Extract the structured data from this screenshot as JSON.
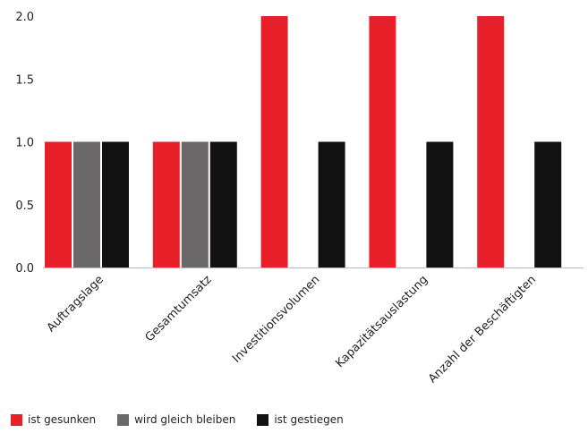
{
  "chart_data": {
    "type": "bar",
    "categories": [
      "Auftragslage",
      "Gesamtumsatz",
      "Investitionsvolumen",
      "Kapazitätsauslastung",
      "Anzahl der Beschäftigten"
    ],
    "series": [
      {
        "name": "ist gesunken",
        "color": "#e8202a",
        "values": [
          1,
          1,
          2,
          2,
          2
        ]
      },
      {
        "name": "wird gleich bleiben",
        "color": "#6a6869",
        "values": [
          1,
          1,
          0,
          0,
          0
        ]
      },
      {
        "name": "ist gestiegen",
        "color": "#111111",
        "values": [
          1,
          1,
          1,
          1,
          1
        ]
      }
    ],
    "yticks": [
      "0.0",
      "0.5",
      "1.0",
      "1.5",
      "2.0"
    ],
    "ylim": [
      0,
      2
    ],
    "grid": false,
    "legend_position": "bottom-left"
  }
}
